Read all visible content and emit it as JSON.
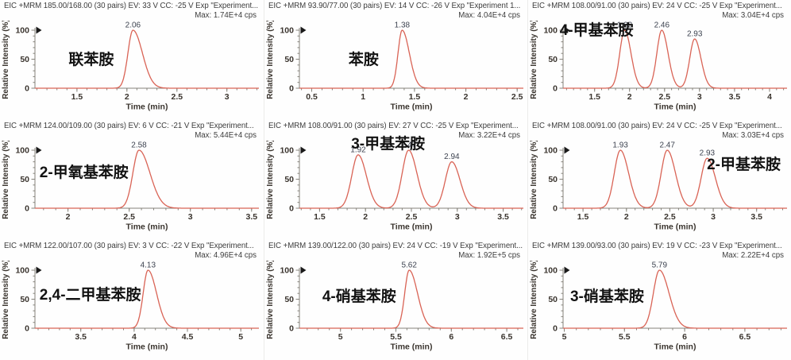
{
  "colors": {
    "peak_line": "#d96355",
    "axis": "#85837b",
    "tick_text": "#3a342e",
    "header_text": "#3d3d3d",
    "peak_label": "#3d4350",
    "compound_text": "#121212",
    "background": "#fefefe"
  },
  "chart_data": [
    {
      "type": "line",
      "title": "EIC +MRM 185.00/168.00 (30 pairs) EV: 33 V CC: -25 V Exp \"Experiment...",
      "max_label": "Max: 1.74E+4 cps",
      "compound": "联苯胺",
      "compound_pos": {
        "left_pct": 26,
        "top_pct": 40
      },
      "xlabel": "Time (min)",
      "ylabel": "Relative Intensity (%)",
      "xlim": [
        1.08,
        3.32
      ],
      "xticks": [
        "1.5",
        "2",
        "2.5",
        "3"
      ],
      "ylim": [
        0,
        100
      ],
      "yticks": [
        "0",
        "50",
        "100"
      ],
      "peak_width": {
        "left": 0.05,
        "right": 0.095
      },
      "peaks": [
        {
          "rt": 2.06,
          "height": 100,
          "label": "2.06"
        }
      ]
    },
    {
      "type": "line",
      "title": "EIC +MRM 93.90/77.00 (30 pairs) EV: 14 V CC: -26 V Exp \"Experiment 1...",
      "max_label": "Max: 4.04E+4 cps",
      "compound": "苯胺",
      "compound_pos": {
        "left_pct": 32,
        "top_pct": 40
      },
      "xlabel": "Time (min)",
      "ylabel": "Relative Intensity (%)",
      "xlim": [
        0.38,
        2.56
      ],
      "xticks": [
        "0.5",
        "1",
        "1.5",
        "2",
        "2.5"
      ],
      "ylim": [
        0,
        100
      ],
      "yticks": [
        "0",
        "50",
        "100"
      ],
      "peak_width": {
        "left": 0.04,
        "right": 0.07
      },
      "peaks": [
        {
          "rt": 1.38,
          "height": 100,
          "label": "1.38"
        }
      ]
    },
    {
      "type": "line",
      "title": "EIC +MRM 108.00/91.00 (30 pairs) EV: 24 V CC: -25 V Exp \"Experiment...",
      "max_label": "Max: 3.04E+4 cps",
      "compound": "4-甲基苯胺",
      "compound_pos": {
        "left_pct": 12,
        "top_pct": 15
      },
      "xlabel": "Time (min)",
      "ylabel": "Relative Intensity (%)",
      "xlim": [
        1.05,
        4.25
      ],
      "xticks": [
        "1.5",
        "2",
        "2.5",
        "3",
        "3.5",
        "4"
      ],
      "ylim": [
        0,
        100
      ],
      "yticks": [
        "0",
        "50",
        "100"
      ],
      "peak_width": {
        "left": 0.07,
        "right": 0.09
      },
      "peaks": [
        {
          "rt": 1.93,
          "height": 100,
          "label": "1.93"
        },
        {
          "rt": 2.46,
          "height": 100,
          "label": "2.46"
        },
        {
          "rt": 2.93,
          "height": 85,
          "label": "2.93"
        }
      ]
    },
    {
      "type": "line",
      "title": "EIC +MRM 124.00/109.00 (30 pairs) EV: 6 V CC: -21 V Exp \"Experiment...",
      "max_label": "Max: 5.44E+4 cps",
      "compound": "2-甲氧基苯胺",
      "compound_pos": {
        "left_pct": 15,
        "top_pct": 34
      },
      "xlabel": "Time (min)",
      "ylabel": "Relative Intensity (%)",
      "xlim": [
        1.73,
        3.56
      ],
      "xticks": [
        "2",
        "2.5",
        "3",
        "3.5"
      ],
      "ylim": [
        0,
        100
      ],
      "yticks": [
        "0",
        "50",
        "100"
      ],
      "peak_width": {
        "left": 0.05,
        "right": 0.09
      },
      "peaks": [
        {
          "rt": 2.58,
          "height": 100,
          "label": "2.58"
        }
      ]
    },
    {
      "type": "line",
      "title": "EIC +MRM 108.00/91.00 (30 pairs) EV: 27 V CC: -25 V Exp \"Experiment...",
      "max_label": "Max: 3.22E+4 cps",
      "compound": "3-甲基苯胺",
      "compound_pos": {
        "left_pct": 33,
        "top_pct": 10
      },
      "xlabel": "Time (min)",
      "ylabel": "Relative Intensity (%)",
      "xlim": [
        1.28,
        3.72
      ],
      "xticks": [
        "1.5",
        "2",
        "2.5",
        "3",
        "3.5"
      ],
      "ylim": [
        0,
        100
      ],
      "yticks": [
        "0",
        "50",
        "100"
      ],
      "peak_width": {
        "left": 0.07,
        "right": 0.09
      },
      "peaks": [
        {
          "rt": 1.92,
          "height": 92,
          "label": "1.92"
        },
        {
          "rt": 2.47,
          "height": 100,
          "label": "2.47"
        },
        {
          "rt": 2.94,
          "height": 80,
          "label": "2.94"
        }
      ]
    },
    {
      "type": "line",
      "title": "EIC +MRM 108.00/91.00 (30 pairs) EV: 24 V CC: -25 V Exp \"Experiment...",
      "max_label": "Max: 3.03E+4 cps",
      "compound": "2-甲基苯胺",
      "compound_pos": {
        "left_pct": 68,
        "top_pct": 27
      },
      "xlabel": "Time (min)",
      "ylabel": "Relative Intensity (%)",
      "xlim": [
        1.27,
        3.85
      ],
      "xticks": [
        "1.5",
        "2",
        "2.5",
        "3",
        "3.5"
      ],
      "ylim": [
        0,
        100
      ],
      "yticks": [
        "0",
        "50",
        "100"
      ],
      "peak_width": {
        "left": 0.07,
        "right": 0.095
      },
      "peaks": [
        {
          "rt": 1.93,
          "height": 100,
          "label": "1.93"
        },
        {
          "rt": 2.47,
          "height": 100,
          "label": "2.47"
        },
        {
          "rt": 2.93,
          "height": 86,
          "label": "2.93"
        }
      ]
    },
    {
      "type": "line",
      "title": "EIC +MRM 122.00/107.00 (30 pairs) EV: 3 V CC: -22 V Exp \"Experiment...",
      "max_label": "Max: 4.96E+4 cps",
      "compound": "2,4-二甲基苯胺",
      "compound_pos": {
        "left_pct": 15,
        "top_pct": 36
      },
      "xlabel": "Time (min)",
      "ylabel": "Relative Intensity (%)",
      "xlim": [
        3.07,
        5.17
      ],
      "xticks": [
        "3.5",
        "4",
        "4.5",
        "5"
      ],
      "ylim": [
        0,
        100
      ],
      "yticks": [
        "0",
        "50",
        "100"
      ],
      "peak_width": {
        "left": 0.045,
        "right": 0.08
      },
      "peaks": [
        {
          "rt": 4.13,
          "height": 100,
          "label": "4.13"
        }
      ]
    },
    {
      "type": "line",
      "title": "EIC +MRM 139.00/122.00 (30 pairs) EV: 24 V CC: -19 V Exp \"Experiment...",
      "max_label": "Max: 1.92E+5 cps",
      "compound": "4-硝基苯胺",
      "compound_pos": {
        "left_pct": 22,
        "top_pct": 37
      },
      "xlabel": "Time (min)",
      "ylabel": "Relative Intensity (%)",
      "xlim": [
        4.63,
        6.65
      ],
      "xticks": [
        "5",
        "5.5",
        "6",
        "6.5"
      ],
      "ylim": [
        0,
        100
      ],
      "yticks": [
        "0",
        "50",
        "100"
      ],
      "peak_width": {
        "left": 0.04,
        "right": 0.075
      },
      "peaks": [
        {
          "rt": 5.62,
          "height": 100,
          "label": "5.62"
        }
      ]
    },
    {
      "type": "line",
      "title": "EIC +MRM 139.00/93.00 (30 pairs) EV: 19 V CC: -23 V Exp \"Experiment...",
      "max_label": "Max: 2.22E+4 cps",
      "compound": "3-硝基苯胺",
      "compound_pos": {
        "left_pct": 16,
        "top_pct": 37
      },
      "xlabel": "Time (min)",
      "ylabel": "Relative Intensity (%)",
      "xlim": [
        4.99,
        6.85
      ],
      "xticks": [
        "5",
        "5.5",
        "6",
        "6.5"
      ],
      "ylim": [
        0,
        100
      ],
      "yticks": [
        "0",
        "50",
        "100"
      ],
      "peak_width": {
        "left": 0.05,
        "right": 0.08
      },
      "peaks": [
        {
          "rt": 5.79,
          "height": 100,
          "label": "5.79"
        }
      ]
    }
  ]
}
